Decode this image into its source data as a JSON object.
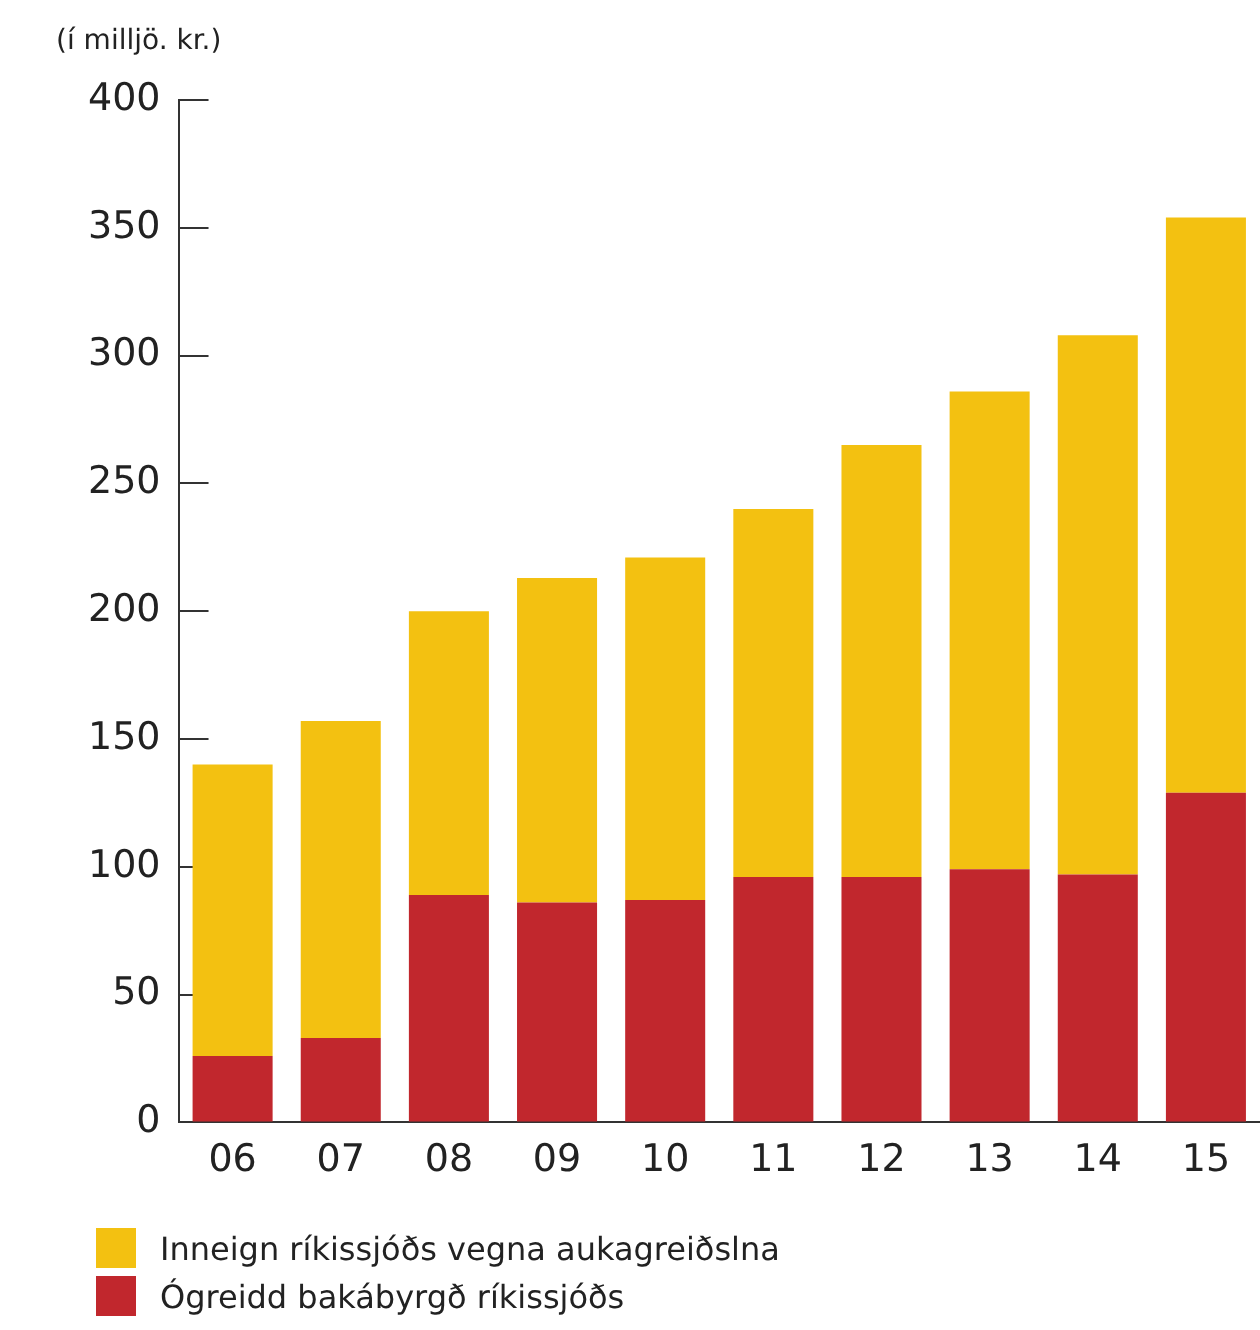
{
  "chart_data": {
    "type": "bar",
    "ylabel": "(í milljö. kr.)",
    "categories": [
      "06",
      "07",
      "08",
      "09",
      "10",
      "11",
      "12",
      "13",
      "14",
      "15"
    ],
    "stacked": true,
    "ylim": [
      0,
      400
    ],
    "yticks": [
      0,
      50,
      100,
      150,
      200,
      250,
      300,
      350,
      400
    ],
    "grid": false,
    "legend": "bottom left",
    "series": [
      {
        "name": "Ógreidd bakábyrgð ríkissjóðs",
        "color": "#c1272d",
        "values": [
          26,
          33,
          89,
          86,
          87,
          96,
          96,
          99,
          97,
          129
        ]
      },
      {
        "name": "Inneign ríkissjóðs vegna aukagreiðslna",
        "color": "#f3c111",
        "values": [
          114,
          124,
          111,
          127,
          134,
          144,
          169,
          187,
          211,
          225
        ]
      }
    ]
  }
}
